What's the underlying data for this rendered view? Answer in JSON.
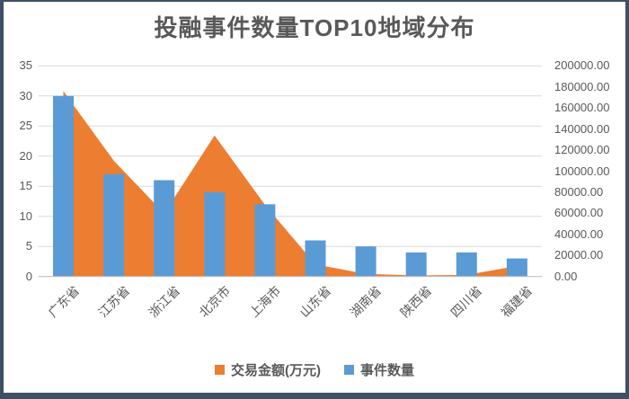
{
  "frame": {
    "border_color": "#3E5066",
    "background": "#FFFFFF"
  },
  "chart_data": {
    "type": "combo",
    "title": "投融事件数量TOP10地域分布",
    "categories": [
      "广东省",
      "江苏省",
      "浙江省",
      "北京市",
      "上海市",
      "山东省",
      "湖南省",
      "陕西省",
      "四川省",
      "福建省"
    ],
    "series": [
      {
        "name": "交易金额(万元)",
        "type": "area",
        "axis": "right",
        "color": "#ED7D31",
        "values": [
          176000,
          110000,
          60000,
          134000,
          68000,
          11500,
          2500,
          1000,
          1500,
          10000
        ]
      },
      {
        "name": "事件数量",
        "type": "bar",
        "axis": "left",
        "color": "#5B9BD5",
        "values": [
          30,
          17,
          16,
          14,
          12,
          6,
          5,
          4,
          4,
          3
        ]
      }
    ],
    "left_axis": {
      "min": 0,
      "max": 35,
      "step": 5,
      "ticks": [
        "35",
        "30",
        "25",
        "20",
        "15",
        "10",
        "5",
        "0"
      ]
    },
    "right_axis": {
      "min": 0,
      "max": 200000,
      "step": 20000,
      "ticks": [
        "200000.00",
        "180000.00",
        "160000.00",
        "140000.00",
        "120000.00",
        "100000.00",
        "80000.00",
        "60000.00",
        "40000.00",
        "20000.00",
        "0.00"
      ]
    },
    "grid": true,
    "legend_position": "bottom",
    "styles": {
      "title_color": "#595959",
      "axis_text_color": "#595959",
      "gridline_color": "#D9D9D9",
      "axis_line_color": "#BFBFBF"
    }
  }
}
